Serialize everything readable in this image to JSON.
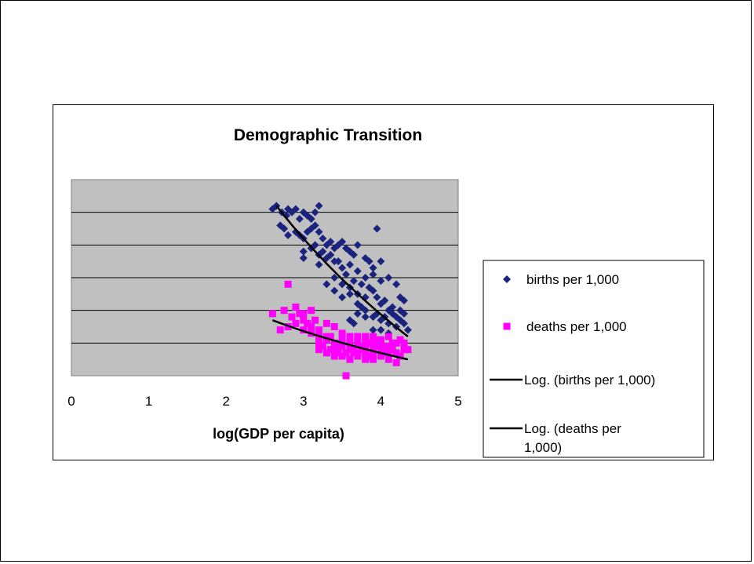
{
  "chart_data": {
    "type": "scatter",
    "title": "Demographic Transition",
    "xlabel": "log(GDP per capita)",
    "ylabel": "",
    "xlim": [
      0,
      5
    ],
    "ylim": [
      0,
      60
    ],
    "xticks": [
      "0",
      "1",
      "2",
      "3",
      "4",
      "5"
    ],
    "y_tick_labels_shown": false,
    "grid": "horizontal",
    "plot_background": "#c0c0c0",
    "legend_position": "right",
    "series": [
      {
        "name": "births per 1,000",
        "marker": "diamond",
        "color": "#1a237e",
        "points": [
          [
            2.6,
            51
          ],
          [
            2.65,
            52
          ],
          [
            2.72,
            50
          ],
          [
            2.78,
            49
          ],
          [
            2.8,
            51
          ],
          [
            2.85,
            50
          ],
          [
            2.9,
            51
          ],
          [
            2.95,
            48
          ],
          [
            3.0,
            50
          ],
          [
            3.05,
            49
          ],
          [
            3.1,
            48
          ],
          [
            3.15,
            50
          ],
          [
            3.2,
            52
          ],
          [
            2.7,
            46
          ],
          [
            2.75,
            45
          ],
          [
            2.8,
            43
          ],
          [
            2.9,
            44
          ],
          [
            2.95,
            43
          ],
          [
            3.0,
            42
          ],
          [
            3.05,
            44
          ],
          [
            3.1,
            45
          ],
          [
            3.15,
            46
          ],
          [
            3.2,
            44
          ],
          [
            3.25,
            42
          ],
          [
            3.3,
            40
          ],
          [
            3.35,
            41
          ],
          [
            3.4,
            39
          ],
          [
            3.45,
            40
          ],
          [
            3.5,
            41
          ],
          [
            3.55,
            39
          ],
          [
            3.6,
            38
          ],
          [
            3.65,
            37
          ],
          [
            3.7,
            40
          ],
          [
            3.8,
            36
          ],
          [
            3.85,
            35
          ],
          [
            3.9,
            33
          ],
          [
            3.95,
            45
          ],
          [
            4.0,
            35
          ],
          [
            3.0,
            38
          ],
          [
            3.1,
            39
          ],
          [
            3.2,
            37
          ],
          [
            3.3,
            36
          ],
          [
            3.4,
            35
          ],
          [
            3.5,
            33
          ],
          [
            3.6,
            34
          ],
          [
            3.7,
            32
          ],
          [
            3.8,
            30
          ],
          [
            3.9,
            31
          ],
          [
            4.0,
            29
          ],
          [
            4.1,
            30
          ],
          [
            4.2,
            28
          ],
          [
            4.25,
            24
          ],
          [
            4.3,
            23
          ],
          [
            3.0,
            36
          ],
          [
            3.2,
            34
          ],
          [
            3.4,
            30
          ],
          [
            3.5,
            28
          ],
          [
            3.6,
            27
          ],
          [
            3.7,
            25
          ],
          [
            3.8,
            24
          ],
          [
            3.9,
            26
          ],
          [
            4.0,
            22
          ],
          [
            4.1,
            20
          ],
          [
            4.15,
            19
          ],
          [
            4.2,
            18
          ],
          [
            4.25,
            17
          ],
          [
            4.3,
            16
          ],
          [
            4.35,
            14
          ],
          [
            3.3,
            28
          ],
          [
            3.5,
            24
          ],
          [
            3.7,
            22
          ],
          [
            3.8,
            20
          ],
          [
            3.9,
            18
          ],
          [
            4.0,
            17
          ],
          [
            4.1,
            16
          ],
          [
            4.2,
            15
          ],
          [
            3.4,
            26
          ],
          [
            3.6,
            25
          ],
          [
            3.75,
            21
          ],
          [
            3.95,
            19
          ],
          [
            4.05,
            18
          ],
          [
            3.15,
            40
          ],
          [
            3.25,
            38
          ],
          [
            3.35,
            37
          ],
          [
            3.45,
            35
          ],
          [
            3.55,
            31
          ],
          [
            3.65,
            29
          ],
          [
            3.75,
            28
          ],
          [
            3.85,
            27
          ],
          [
            3.95,
            24
          ],
          [
            4.05,
            23
          ],
          [
            4.15,
            21
          ],
          [
            4.25,
            20
          ],
          [
            4.3,
            19
          ],
          [
            3.6,
            17
          ],
          [
            3.65,
            16
          ],
          [
            3.7,
            19
          ],
          [
            3.8,
            18
          ],
          [
            3.9,
            14
          ],
          [
            4.0,
            14
          ],
          [
            4.1,
            13
          ]
        ],
        "trendline": {
          "name": "Log. (births per 1,000)",
          "type": "log",
          "x_range": [
            2.65,
            4.35
          ],
          "y_at_start": 52,
          "y_at_end": 12
        }
      },
      {
        "name": "deaths per 1,000",
        "marker": "square",
        "color": "#ff00ff",
        "points": [
          [
            2.6,
            19
          ],
          [
            2.75,
            20
          ],
          [
            2.8,
            28
          ],
          [
            2.85,
            18
          ],
          [
            2.9,
            21
          ],
          [
            2.95,
            19
          ],
          [
            3.0,
            17
          ],
          [
            3.05,
            16
          ],
          [
            3.1,
            20
          ],
          [
            2.7,
            14
          ],
          [
            2.8,
            15
          ],
          [
            2.9,
            16
          ],
          [
            3.0,
            14
          ],
          [
            3.1,
            13
          ],
          [
            3.2,
            12
          ],
          [
            3.3,
            11
          ],
          [
            3.4,
            10
          ],
          [
            3.5,
            9
          ],
          [
            3.6,
            8
          ],
          [
            3.7,
            7
          ],
          [
            3.8,
            9
          ],
          [
            3.9,
            8
          ],
          [
            4.0,
            8
          ],
          [
            4.1,
            7
          ],
          [
            4.2,
            7
          ],
          [
            4.3,
            8
          ],
          [
            3.2,
            8
          ],
          [
            3.3,
            7
          ],
          [
            3.4,
            6
          ],
          [
            3.5,
            6
          ],
          [
            3.6,
            5
          ],
          [
            3.7,
            6
          ],
          [
            3.8,
            5
          ],
          [
            3.9,
            5
          ],
          [
            4.0,
            6
          ],
          [
            4.1,
            5
          ],
          [
            4.2,
            4
          ],
          [
            3.25,
            9
          ],
          [
            3.35,
            8
          ],
          [
            3.45,
            7
          ],
          [
            3.55,
            7
          ],
          [
            3.65,
            8
          ],
          [
            3.75,
            9
          ],
          [
            3.85,
            10
          ],
          [
            3.95,
            11
          ],
          [
            4.05,
            9
          ],
          [
            4.15,
            10
          ],
          [
            4.25,
            11
          ],
          [
            4.3,
            10
          ],
          [
            3.1,
            15
          ],
          [
            3.2,
            14
          ],
          [
            3.3,
            16
          ],
          [
            3.4,
            15
          ],
          [
            3.5,
            13
          ],
          [
            3.6,
            12
          ],
          [
            3.7,
            11
          ],
          [
            3.8,
            12
          ],
          [
            3.9,
            10
          ],
          [
            4.0,
            11
          ],
          [
            4.1,
            9
          ],
          [
            3.5,
            11
          ],
          [
            3.6,
            10
          ],
          [
            3.7,
            12
          ],
          [
            3.8,
            7
          ],
          [
            3.9,
            6
          ],
          [
            3.55,
            0
          ],
          [
            3.0,
            19
          ],
          [
            3.15,
            17
          ],
          [
            3.35,
            12
          ],
          [
            3.45,
            9
          ],
          [
            3.65,
            7
          ],
          [
            3.75,
            8
          ],
          [
            3.85,
            6
          ],
          [
            3.95,
            9
          ],
          [
            4.05,
            7
          ],
          [
            4.15,
            8
          ],
          [
            4.25,
            6
          ],
          [
            4.3,
            9
          ],
          [
            4.35,
            8
          ],
          [
            3.2,
            10
          ],
          [
            3.3,
            12
          ],
          [
            3.4,
            8
          ],
          [
            3.5,
            10
          ],
          [
            3.6,
            9
          ],
          [
            3.7,
            10
          ],
          [
            3.8,
            11
          ],
          [
            3.9,
            12
          ],
          [
            4.0,
            10
          ],
          [
            4.1,
            12
          ],
          [
            4.2,
            10
          ]
        ],
        "trendline": {
          "name": "Log. (deaths per 1,000)",
          "type": "log",
          "x_range": [
            2.6,
            4.35
          ],
          "y_at_start": 17,
          "y_at_end": 5
        }
      }
    ]
  },
  "legend": {
    "items": [
      {
        "label": "births per 1,000",
        "symbol": "diamond",
        "color": "#1a237e"
      },
      {
        "label": "deaths per 1,000",
        "symbol": "square",
        "color": "#ff00ff"
      },
      {
        "label_lines": [
          "Log. (births per 1,000)"
        ],
        "symbol": "line",
        "color": "#000000"
      },
      {
        "label_lines": [
          "Log. (deaths per",
          "1,000)"
        ],
        "symbol": "line",
        "color": "#000000"
      }
    ]
  }
}
